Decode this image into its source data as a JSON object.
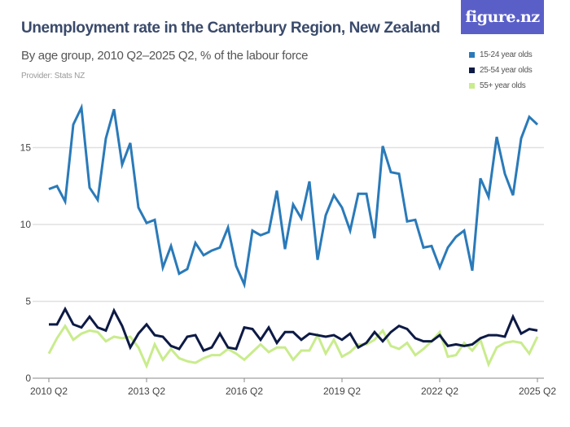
{
  "title": "Unemployment rate in the Canterbury Region, New Zealand",
  "subtitle": "By age group, 2010 Q2–2025 Q2, % of the labour force",
  "provider": "Provider: Stats NZ",
  "logo": "figure.nz",
  "chart_data": {
    "type": "line",
    "title": "Unemployment rate in the Canterbury Region, New Zealand",
    "xlabel": "",
    "ylabel": "",
    "x_start": "2010 Q2",
    "x_end": "2025 Q2",
    "x_ticks": [
      "2010 Q2",
      "2013 Q2",
      "2016 Q2",
      "2019 Q2",
      "2022 Q2",
      "2025 Q2"
    ],
    "y_ticks": [
      "0",
      "5",
      "10",
      "15"
    ],
    "ylim": [
      0,
      18.5
    ],
    "grid": true,
    "legend_position": "top-right",
    "series": [
      {
        "name": "15-24 year olds",
        "color": "#2a7ab9",
        "values": [
          12.3,
          12.5,
          11.5,
          16.5,
          17.6,
          12.4,
          11.6,
          15.6,
          17.5,
          13.9,
          15.3,
          11.1,
          10.1,
          10.3,
          7.2,
          8.6,
          6.8,
          7.1,
          8.8,
          8.0,
          8.3,
          8.5,
          9.8,
          7.3,
          6.1,
          9.6,
          9.3,
          9.5,
          12.2,
          8.4,
          11.3,
          10.4,
          12.8,
          7.7,
          10.6,
          11.9,
          11.1,
          9.6,
          12.0,
          12.0,
          9.1,
          15.1,
          13.4,
          13.3,
          10.2,
          10.3,
          8.5,
          8.6,
          7.2,
          8.5,
          9.2,
          9.6,
          7.0,
          13.0,
          11.8,
          15.7,
          13.3,
          11.9,
          15.6,
          17.0,
          16.5
        ]
      },
      {
        "name": "25-54 year olds",
        "color": "#0d1a45",
        "values": [
          3.5,
          3.5,
          4.5,
          3.5,
          3.3,
          4.0,
          3.3,
          3.1,
          4.4,
          3.4,
          2.0,
          2.9,
          3.5,
          2.8,
          2.7,
          2.1,
          1.9,
          2.7,
          2.8,
          1.8,
          2.0,
          2.9,
          2.0,
          1.9,
          3.3,
          3.2,
          2.5,
          3.3,
          2.3,
          3.0,
          3.0,
          2.5,
          2.9,
          2.8,
          2.7,
          2.8,
          2.5,
          2.9,
          2.0,
          2.3,
          3.0,
          2.4,
          3.0,
          3.4,
          3.2,
          2.6,
          2.4,
          2.4,
          2.8,
          2.1,
          2.2,
          2.1,
          2.2,
          2.6,
          2.8,
          2.8,
          2.7,
          4.0,
          2.9,
          3.2,
          3.1
        ]
      },
      {
        "name": "55+ year olds",
        "color": "#c9ec8c",
        "values": [
          1.6,
          2.6,
          3.4,
          2.5,
          2.9,
          3.1,
          3.0,
          2.4,
          2.7,
          2.6,
          2.7,
          2.0,
          0.8,
          2.2,
          1.2,
          1.9,
          1.3,
          1.1,
          1.0,
          1.3,
          1.5,
          1.5,
          1.9,
          1.6,
          1.2,
          1.7,
          2.2,
          1.7,
          2.0,
          2.0,
          1.2,
          1.8,
          1.8,
          2.8,
          1.6,
          2.5,
          1.4,
          1.7,
          2.2,
          2.2,
          2.5,
          3.1,
          2.1,
          1.9,
          2.3,
          1.5,
          1.9,
          2.4,
          3.0,
          1.4,
          1.5,
          2.3,
          1.8,
          2.5,
          0.9,
          2.0,
          2.3,
          2.4,
          2.3,
          1.6,
          2.7
        ]
      }
    ]
  }
}
